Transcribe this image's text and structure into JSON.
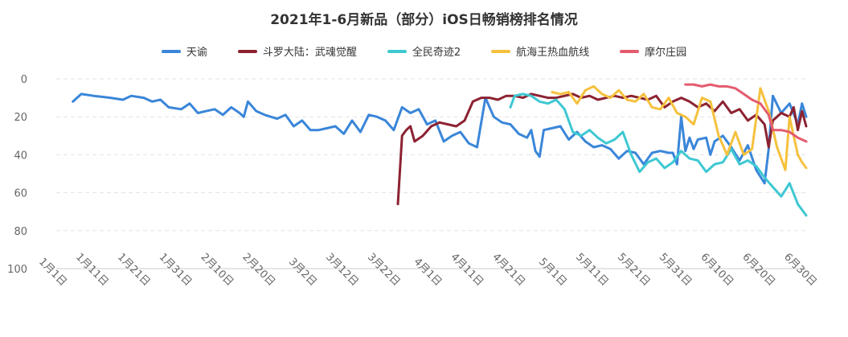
{
  "chart_data": {
    "type": "line",
    "title": "2021年1-6月新品（部分）iOS日畅销榜排名情况",
    "xlabel": "",
    "ylabel": "",
    "ylim": [
      100,
      0
    ],
    "y_reversed": true,
    "y_ticks": [
      "0",
      "20",
      "40",
      "60",
      "80",
      "100"
    ],
    "x_ticks": [
      "1月1日",
      "1月11日",
      "1月21日",
      "1月31日",
      "2月10日",
      "2月20日",
      "3月2日",
      "3月12日",
      "3月22日",
      "4月1日",
      "4月11日",
      "4月21日",
      "5月1日",
      "5月11日",
      "5月21日",
      "5月31日",
      "6月10日",
      "6月20日",
      "6月30日"
    ],
    "x_range": [
      "1月1日",
      "6月30日"
    ],
    "legend_position": "top",
    "grid": "horizontal-dashed",
    "series": [
      {
        "name": "天谕",
        "color": "#3a86d9",
        "points": [
          [
            "1月5日",
            12
          ],
          [
            "1月7日",
            8
          ],
          [
            "1月10日",
            9
          ],
          [
            "1月14日",
            10
          ],
          [
            "1月17日",
            11
          ],
          [
            "1月19日",
            9
          ],
          [
            "1月22日",
            10
          ],
          [
            "1月24日",
            12
          ],
          [
            "1月26日",
            11
          ],
          [
            "1月28日",
            15
          ],
          [
            "1月31日",
            16
          ],
          [
            "2月2日",
            13
          ],
          [
            "2月4日",
            18
          ],
          [
            "2月6日",
            17
          ],
          [
            "2月8日",
            16
          ],
          [
            "2月10日",
            19
          ],
          [
            "2月12日",
            15
          ],
          [
            "2月14日",
            18
          ],
          [
            "2月15日",
            20
          ],
          [
            "2月16日",
            12
          ],
          [
            "2月18日",
            17
          ],
          [
            "2月20日",
            19
          ],
          [
            "2月23日",
            21
          ],
          [
            "2月25日",
            19
          ],
          [
            "2月27日",
            25
          ],
          [
            "3月1日",
            22
          ],
          [
            "3月3日",
            27
          ],
          [
            "3月5日",
            27
          ],
          [
            "3月7日",
            26
          ],
          [
            "3月9日",
            25
          ],
          [
            "3月11日",
            29
          ],
          [
            "3月13日",
            22
          ],
          [
            "3月15日",
            28
          ],
          [
            "3月17日",
            19
          ],
          [
            "3月19日",
            20
          ],
          [
            "3月21日",
            22
          ],
          [
            "3月23日",
            27
          ],
          [
            "3月25日",
            15
          ],
          [
            "3月27日",
            18
          ],
          [
            "3月29日",
            16
          ],
          [
            "3月31日",
            24
          ],
          [
            "4月2日",
            22
          ],
          [
            "4月4日",
            33
          ],
          [
            "4月6日",
            30
          ],
          [
            "4月8日",
            28
          ],
          [
            "4月10日",
            34
          ],
          [
            "4月12日",
            36
          ],
          [
            "4月14日",
            10
          ],
          [
            "4月16日",
            20
          ],
          [
            "4月18日",
            23
          ],
          [
            "4月20日",
            24
          ],
          [
            "4月22日",
            29
          ],
          [
            "4月24日",
            31
          ],
          [
            "4月25日",
            27
          ],
          [
            "4月26日",
            38
          ],
          [
            "4月27日",
            41
          ],
          [
            "4月28日",
            27
          ],
          [
            "4月30日",
            26
          ],
          [
            "5月2日",
            25
          ],
          [
            "5月4日",
            32
          ],
          [
            "5月6日",
            28
          ],
          [
            "5月8日",
            33
          ],
          [
            "5月10日",
            36
          ],
          [
            "5月12日",
            35
          ],
          [
            "5月14日",
            37
          ],
          [
            "5月16日",
            42
          ],
          [
            "5月18日",
            38
          ],
          [
            "5月20日",
            39
          ],
          [
            "5月22日",
            45
          ],
          [
            "5月24日",
            39
          ],
          [
            "5月26日",
            38
          ],
          [
            "5月28日",
            39
          ],
          [
            "5月29日",
            39
          ],
          [
            "5月30日",
            45
          ],
          [
            "5月31日",
            20
          ],
          [
            "6月1日",
            38
          ],
          [
            "6月2日",
            31
          ],
          [
            "6月3日",
            37
          ],
          [
            "6月4日",
            32
          ],
          [
            "6月6日",
            31
          ],
          [
            "6月7日",
            40
          ],
          [
            "6月8日",
            33
          ],
          [
            "6月10日",
            30
          ],
          [
            "6月12日",
            36
          ],
          [
            "6月14日",
            43
          ],
          [
            "6月16日",
            35
          ],
          [
            "6月18日",
            48
          ],
          [
            "6月20日",
            55
          ],
          [
            "6月21日",
            37
          ],
          [
            "6月22日",
            9
          ],
          [
            "6月24日",
            18
          ],
          [
            "6月26日",
            13
          ],
          [
            "6月28日",
            24
          ],
          [
            "6月29日",
            13
          ],
          [
            "6月30日",
            20
          ]
        ]
      },
      {
        "name": "斗罗大陆：武魂觉醒",
        "color": "#8c2231",
        "points": [
          [
            "3月24日",
            66
          ],
          [
            "3月25日",
            30
          ],
          [
            "3月26日",
            27
          ],
          [
            "3月27日",
            25
          ],
          [
            "3月28日",
            33
          ],
          [
            "3月30日",
            30
          ],
          [
            "4月1日",
            25
          ],
          [
            "4月3日",
            23
          ],
          [
            "4月5日",
            24
          ],
          [
            "4月7日",
            25
          ],
          [
            "4月9日",
            22
          ],
          [
            "4月11日",
            12
          ],
          [
            "4月13日",
            10
          ],
          [
            "4月15日",
            10
          ],
          [
            "4月17日",
            11
          ],
          [
            "4月19日",
            9
          ],
          [
            "4月21日",
            9
          ],
          [
            "4月23日",
            10
          ],
          [
            "4月25日",
            8
          ],
          [
            "4月27日",
            9
          ],
          [
            "4月29日",
            10
          ],
          [
            "5月1日",
            10
          ],
          [
            "5月3日",
            9
          ],
          [
            "5月5日",
            8
          ],
          [
            "5月7日",
            10
          ],
          [
            "5月9日",
            9
          ],
          [
            "5月11日",
            11
          ],
          [
            "5月13日",
            10
          ],
          [
            "5月15日",
            9
          ],
          [
            "5月17日",
            10
          ],
          [
            "5月19日",
            9
          ],
          [
            "5月21日",
            10
          ],
          [
            "5月23日",
            11
          ],
          [
            "5月25日",
            9
          ],
          [
            "5月27日",
            15
          ],
          [
            "5月29日",
            12
          ],
          [
            "5月31日",
            10
          ],
          [
            "6月2日",
            12
          ],
          [
            "6月4日",
            15
          ],
          [
            "6月6日",
            13
          ],
          [
            "6月8日",
            17
          ],
          [
            "6月10日",
            12
          ],
          [
            "6月12日",
            18
          ],
          [
            "6月14日",
            16
          ],
          [
            "6月16日",
            22
          ],
          [
            "6月18日",
            19
          ],
          [
            "6月20日",
            24
          ],
          [
            "6月21日",
            36
          ],
          [
            "6月22日",
            22
          ],
          [
            "6月24日",
            18
          ],
          [
            "6月26日",
            20
          ],
          [
            "6月27日",
            15
          ],
          [
            "6月28日",
            27
          ],
          [
            "6月29日",
            17
          ],
          [
            "6月30日",
            25
          ]
        ]
      },
      {
        "name": "全民奇迹2",
        "color": "#3ec8d2",
        "points": [
          [
            "4月20日",
            15
          ],
          [
            "4月21日",
            9
          ],
          [
            "4月23日",
            8
          ],
          [
            "4月25日",
            9
          ],
          [
            "4月27日",
            12
          ],
          [
            "4月29日",
            13
          ],
          [
            "5月1日",
            11
          ],
          [
            "5月3日",
            16
          ],
          [
            "5月5日",
            28
          ],
          [
            "5月7日",
            30
          ],
          [
            "5月9日",
            27
          ],
          [
            "5月11日",
            31
          ],
          [
            "5月13日",
            34
          ],
          [
            "5月15日",
            32
          ],
          [
            "5月17日",
            28
          ],
          [
            "5月19日",
            40
          ],
          [
            "5月21日",
            49
          ],
          [
            "5月23日",
            44
          ],
          [
            "5月25日",
            42
          ],
          [
            "5月27日",
            47
          ],
          [
            "5月29日",
            44
          ],
          [
            "5月31日",
            38
          ],
          [
            "6月2日",
            42
          ],
          [
            "6月4日",
            43
          ],
          [
            "6月6日",
            49
          ],
          [
            "6月8日",
            45
          ],
          [
            "6月10日",
            44
          ],
          [
            "6月12日",
            37
          ],
          [
            "6月14日",
            45
          ],
          [
            "6月16日",
            43
          ],
          [
            "6月18日",
            46
          ],
          [
            "6月20日",
            52
          ],
          [
            "6月22日",
            57
          ],
          [
            "6月24日",
            62
          ],
          [
            "6月26日",
            55
          ],
          [
            "6月28日",
            66
          ],
          [
            "6月30日",
            72
          ]
        ]
      },
      {
        "name": "航海王热血航线",
        "color": "#f5c13d",
        "points": [
          [
            "4月30日",
            7
          ],
          [
            "5月2日",
            8
          ],
          [
            "5月4日",
            7
          ],
          [
            "5月6日",
            13
          ],
          [
            "5月8日",
            6
          ],
          [
            "5月10日",
            4
          ],
          [
            "5月12日",
            8
          ],
          [
            "5月14日",
            10
          ],
          [
            "5月16日",
            6
          ],
          [
            "5月18日",
            11
          ],
          [
            "5月20日",
            12
          ],
          [
            "5月22日",
            8
          ],
          [
            "5月24日",
            15
          ],
          [
            "5月26日",
            16
          ],
          [
            "5月28日",
            10
          ],
          [
            "5月30日",
            18
          ],
          [
            "6月1日",
            20
          ],
          [
            "6月3日",
            24
          ],
          [
            "6月5日",
            10
          ],
          [
            "6月7日",
            12
          ],
          [
            "6月9日",
            30
          ],
          [
            "6月11日",
            40
          ],
          [
            "6月13日",
            28
          ],
          [
            "6月15日",
            40
          ],
          [
            "6月17日",
            37
          ],
          [
            "6月19日",
            5
          ],
          [
            "6月21日",
            17
          ],
          [
            "6月23日",
            36
          ],
          [
            "6月25日",
            48
          ],
          [
            "6月26日",
            20
          ],
          [
            "6月27日",
            30
          ],
          [
            "6月28日",
            40
          ],
          [
            "6月29日",
            44
          ],
          [
            "6月30日",
            47
          ]
        ]
      },
      {
        "name": "摩尔庄园",
        "color": "#e45b6e",
        "points": [
          [
            "6月1日",
            3
          ],
          [
            "6月3日",
            3
          ],
          [
            "6月5日",
            4
          ],
          [
            "6月7日",
            3
          ],
          [
            "6月9日",
            4
          ],
          [
            "6月11日",
            4
          ],
          [
            "6月13日",
            5
          ],
          [
            "6月15日",
            8
          ],
          [
            "6月17日",
            11
          ],
          [
            "6月19日",
            13
          ],
          [
            "6月21日",
            19
          ],
          [
            "6月22日",
            27
          ],
          [
            "6月24日",
            27
          ],
          [
            "6月26日",
            28
          ],
          [
            "6月28日",
            31
          ],
          [
            "6月30日",
            33
          ]
        ]
      }
    ]
  }
}
